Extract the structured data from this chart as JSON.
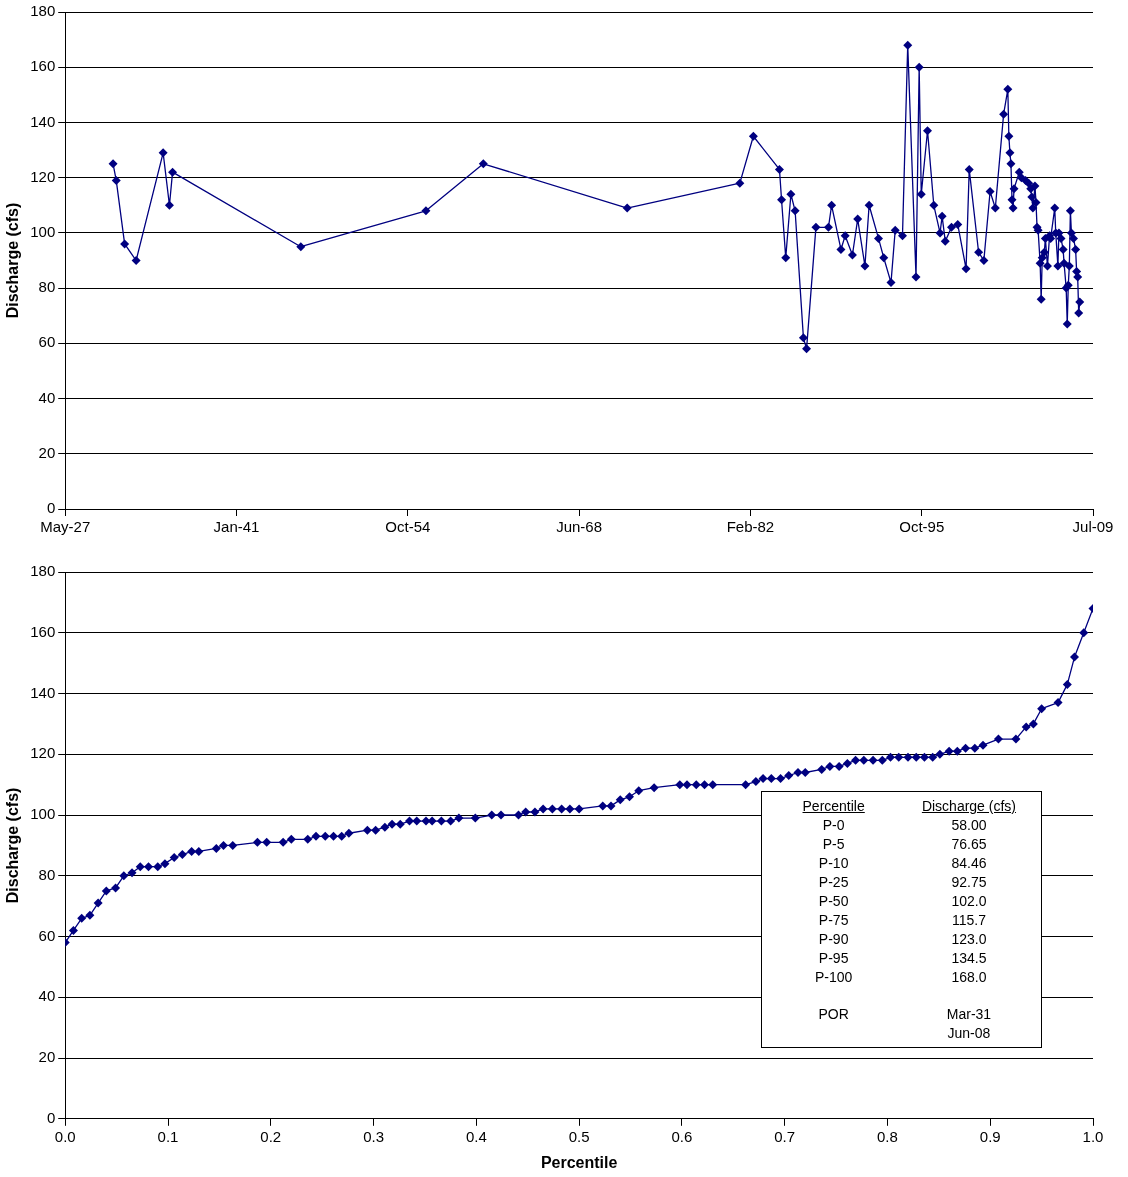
{
  "chart_data": [
    {
      "type": "line",
      "ylabel": "Discharge (cfs)",
      "color": "#000080",
      "marker": "diamond",
      "grid": "y",
      "x": [
        "1931-03",
        "1931-06",
        "1932-02",
        "1933-01",
        "1935-03",
        "1935-09",
        "1935-12",
        "1946-03",
        "1956-03",
        "1960-10",
        "1972-04",
        "1981-04",
        "1982-05",
        "1984-06",
        "1984-08",
        "1984-12",
        "1985-05",
        "1985-09",
        "1986-05",
        "1986-08",
        "1987-05",
        "1988-05",
        "1988-08",
        "1989-05",
        "1989-09",
        "1990-04",
        "1990-09",
        "1991-04",
        "1991-08",
        "1992-05",
        "1992-10",
        "1993-05",
        "1993-09",
        "1994-04",
        "1994-09",
        "1995-05",
        "1995-08",
        "1995-10",
        "1996-04",
        "1996-10",
        "1997-04",
        "1997-06",
        "1997-09",
        "1998-03",
        "1998-09",
        "1999-05",
        "1999-08",
        "2000-05",
        "2000-10",
        "2001-04",
        "2001-09",
        "2002-05",
        "2002-09",
        "2002-10",
        "2002-11",
        "2002-12",
        "2003-01",
        "2003-02",
        "2003-03",
        "2003-08",
        "2003-10",
        "2004-02",
        "2004-05",
        "2004-07",
        "2004-08",
        "2004-09",
        "2004-11",
        "2004-12",
        "2005-01",
        "2005-02",
        "2005-04",
        "2005-05",
        "2005-06",
        "2005-08",
        "2005-09",
        "2005-11",
        "2006-01",
        "2006-02",
        "2006-06",
        "2006-07",
        "2006-09",
        "2006-10",
        "2006-12",
        "2007-02",
        "2007-03",
        "2007-05",
        "2007-06",
        "2007-07",
        "2007-08",
        "2007-09",
        "2007-10",
        "2007-12",
        "2008-02",
        "2008-03",
        "2008-04",
        "2008-05",
        "2008-06"
      ],
      "values": [
        125,
        119,
        96,
        90,
        129,
        110,
        122,
        95,
        108,
        125,
        109,
        118,
        135,
        123,
        112,
        91,
        114,
        108,
        62,
        58,
        102,
        102,
        110,
        94,
        99,
        92,
        105,
        88,
        110,
        98,
        91,
        82,
        101,
        99,
        168,
        84,
        160,
        114,
        137,
        110,
        100,
        106,
        97,
        102,
        103,
        87,
        123,
        93,
        90,
        115,
        109,
        143,
        152,
        135,
        129,
        125,
        112,
        109,
        116,
        122,
        120,
        119,
        118,
        116,
        113,
        109,
        117,
        111,
        102,
        101,
        89,
        76,
        91,
        93,
        98,
        88,
        99,
        98,
        109,
        100,
        88,
        100,
        98,
        94,
        89,
        80,
        67,
        81,
        88,
        108,
        100,
        98,
        94,
        86,
        84,
        71,
        75
      ],
      "xlim": [
        "1927-05-18",
        "2009-07-06"
      ],
      "xticks": [
        {
          "value": "1927-05-18",
          "label": "May-27"
        },
        {
          "value": "1941-01-24",
          "label": "Jan-41"
        },
        {
          "value": "1954-10-03",
          "label": "Oct-54"
        },
        {
          "value": "1968-06-11",
          "label": "Jun-68"
        },
        {
          "value": "1982-02-19",
          "label": "Feb-82"
        },
        {
          "value": "1995-10-29",
          "label": "Oct-95"
        },
        {
          "value": "2009-07-06",
          "label": "Jul-09"
        }
      ],
      "ylim": [
        0,
        180
      ],
      "yticks": [
        0,
        20,
        40,
        60,
        80,
        100,
        120,
        140,
        160,
        180
      ]
    },
    {
      "type": "line",
      "xlabel": "Percentile",
      "ylabel": "Discharge (cfs)",
      "color": "#000080",
      "marker": "diamond",
      "grid": "y",
      "x": [
        0,
        0.008,
        0.016,
        0.024,
        0.032,
        0.04,
        0.049,
        0.057,
        0.065,
        0.073,
        0.081,
        0.09,
        0.097,
        0.106,
        0.114,
        0.123,
        0.13,
        0.147,
        0.154,
        0.163,
        0.187,
        0.196,
        0.212,
        0.22,
        0.236,
        0.244,
        0.253,
        0.261,
        0.269,
        0.276,
        0.294,
        0.302,
        0.311,
        0.318,
        0.326,
        0.335,
        0.342,
        0.351,
        0.357,
        0.366,
        0.375,
        0.383,
        0.399,
        0.415,
        0.424,
        0.441,
        0.448,
        0.457,
        0.465,
        0.474,
        0.483,
        0.491,
        0.5,
        0.523,
        0.531,
        0.54,
        0.549,
        0.558,
        0.573,
        0.598,
        0.605,
        0.614,
        0.622,
        0.63,
        0.662,
        0.672,
        0.679,
        0.687,
        0.696,
        0.704,
        0.713,
        0.72,
        0.736,
        0.744,
        0.753,
        0.761,
        0.769,
        0.777,
        0.786,
        0.795,
        0.803,
        0.811,
        0.82,
        0.828,
        0.836,
        0.844,
        0.851,
        0.86,
        0.868,
        0.876,
        0.885,
        0.893,
        0.908,
        0.925,
        0.935,
        0.942,
        0.95,
        0.966,
        0.975,
        0.982,
        0.991,
        1.0
      ],
      "values": [
        58,
        62,
        66,
        67,
        71,
        75,
        76,
        80,
        81,
        83,
        83,
        83,
        84,
        86,
        87,
        88,
        88,
        89,
        90,
        90,
        91,
        91,
        91,
        92,
        92,
        93,
        93,
        93,
        93,
        94,
        95,
        95,
        96,
        97,
        97,
        98,
        98,
        98,
        98,
        98,
        98,
        99,
        99,
        100,
        100,
        100,
        101,
        101,
        102,
        102,
        102,
        102,
        102,
        103,
        103,
        105,
        106,
        108,
        109,
        110,
        110,
        110,
        110,
        110,
        110,
        111,
        112,
        112,
        112,
        113,
        114,
        114,
        115,
        116,
        116,
        117,
        118,
        118,
        118,
        118,
        119,
        119,
        119,
        119,
        119,
        119,
        120,
        121,
        121,
        122,
        122,
        123,
        125,
        125,
        129,
        130,
        135,
        137,
        143,
        152,
        160,
        168
      ],
      "xlim": [
        0,
        1
      ],
      "xticks": [
        {
          "value": 0,
          "label": "0.0"
        },
        {
          "value": 0.1,
          "label": "0.1"
        },
        {
          "value": 0.2,
          "label": "0.2"
        },
        {
          "value": 0.3,
          "label": "0.3"
        },
        {
          "value": 0.4,
          "label": "0.4"
        },
        {
          "value": 0.5,
          "label": "0.5"
        },
        {
          "value": 0.6,
          "label": "0.6"
        },
        {
          "value": 0.7,
          "label": "0.7"
        },
        {
          "value": 0.8,
          "label": "0.8"
        },
        {
          "value": 0.9,
          "label": "0.9"
        },
        {
          "value": 1,
          "label": "1.0"
        }
      ],
      "ylim": [
        0,
        180
      ],
      "yticks": [
        0,
        20,
        40,
        60,
        80,
        100,
        120,
        140,
        160,
        180
      ],
      "annotations": [
        "Percentile",
        "Discharge (cfs)",
        "P-0",
        "58.00",
        "P-5",
        "76.65",
        "P-10",
        "84.46",
        "P-25",
        "92.75",
        "P-50",
        "102.0",
        "P-75",
        "115.7",
        "P-90",
        "123.0",
        "P-95",
        "134.5",
        "P-100",
        "168.0",
        "POR",
        "Mar-31",
        "Jun-08"
      ]
    }
  ]
}
